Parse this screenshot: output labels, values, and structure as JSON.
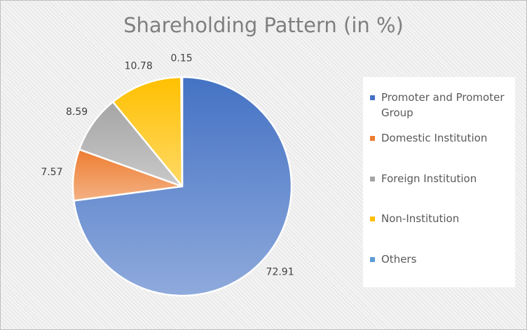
{
  "chart_data": {
    "type": "pie",
    "title": "Shareholding Pattern (in %)",
    "categories": [
      "Promoter and Promoter Group",
      "Domestic Institution",
      "Foreign Institution",
      "Non-Institution",
      "Others"
    ],
    "values": [
      72.91,
      7.57,
      8.59,
      10.78,
      0.15
    ],
    "value_labels": [
      "72.91",
      "7.57",
      "8.59",
      "10.78",
      "0.15"
    ],
    "colors": [
      "#4472c4",
      "#ed7d31",
      "#a5a5a5",
      "#ffc000",
      "#5b9bd5"
    ],
    "legend_position": "right"
  }
}
